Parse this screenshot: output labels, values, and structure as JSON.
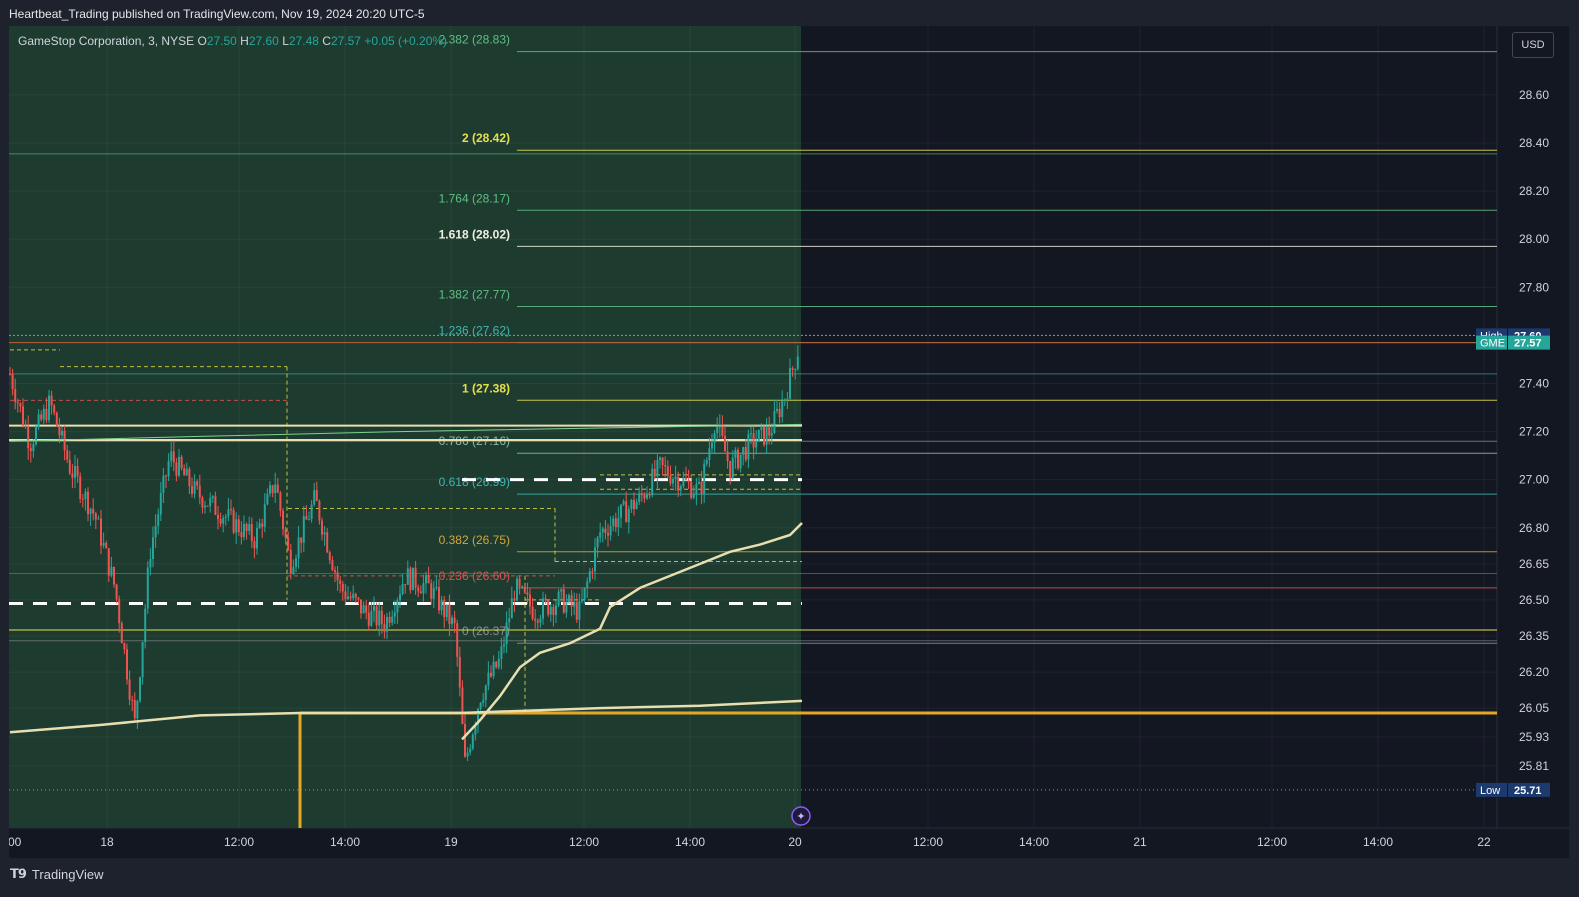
{
  "header": {
    "published_text": "Heartbeat_Trading published on TradingView.com, Nov 19, 2024 20:20 UTC-5"
  },
  "legend": {
    "symbol": "GameStop Corporation, 3, NYSE",
    "open_label": "O",
    "open_value": "27.50",
    "high_label": "H",
    "high_value": "27.60",
    "low_label": "L",
    "low_value": "27.48",
    "close_label": "C",
    "close_value": "27.57",
    "change": "+0.05 (+0.20%)"
  },
  "currency": "USD",
  "footer": {
    "brand": "TradingView",
    "logo_icon": "tradingview-logo-icon"
  },
  "colors": {
    "background": "#131722",
    "session_shade": "#1e3b30",
    "up_candle": "#26a69a",
    "down_candle": "#ef5350",
    "vwap": "#e8dfb0",
    "fib_yellow": "#e5e04a",
    "fib_green": "#5fbf84",
    "fib_teal": "#3fb6b0",
    "fib_orange": "#d4a63a",
    "fib_red": "#d9534f",
    "support_orange": "#e6a824"
  },
  "chart_data": {
    "type": "candlestick",
    "symbol": "GME",
    "timeframe": "3",
    "ylim": [
      25.66,
      28.88
    ],
    "x_ticks": [
      "00",
      "18",
      "12:00",
      "14:00",
      "19",
      "12:00",
      "14:00",
      "20",
      "12:00",
      "14:00",
      "21",
      "12:00",
      "14:00",
      "22"
    ],
    "y_ticks": [
      "28.60",
      "28.40",
      "28.20",
      "28.00",
      "27.80",
      "27.40",
      "27.20",
      "27.00",
      "26.80",
      "26.65",
      "26.50",
      "26.35",
      "26.20",
      "26.05",
      "25.93",
      "25.81"
    ],
    "price_tags": [
      {
        "label": "High",
        "value": "27.60",
        "price": 27.6,
        "color": "#1c3a6e"
      },
      {
        "label": "GME",
        "value": "27.57",
        "price": 27.57,
        "color": "#26a69a"
      },
      {
        "label": "Low",
        "value": "25.71",
        "price": 25.71,
        "color": "#1c3a6e"
      }
    ],
    "fib_levels": [
      {
        "text": "2.382 (28.83)",
        "price": 28.83,
        "color": "#5fbf84"
      },
      {
        "text": "2 (28.42)",
        "price": 28.42,
        "color": "#e5e04a"
      },
      {
        "text": "1.764 (28.17)",
        "price": 28.17,
        "color": "#5fbf84"
      },
      {
        "text": "1.618 (28.02)",
        "price": 28.02,
        "color": "#f0f0e0"
      },
      {
        "text": "1.382 (27.77)",
        "price": 27.77,
        "color": "#5fbf84"
      },
      {
        "text": "1.236 (27.62)",
        "price": 27.62,
        "color": "#3fb6b0"
      },
      {
        "text": "1 (27.38)",
        "price": 27.38,
        "color": "#e5e04a"
      },
      {
        "text": "0.786 (27.16)",
        "price": 27.16,
        "color": "#8fb8a8"
      },
      {
        "text": "0.618 (26.99)",
        "price": 26.99,
        "color": "#3fb6b0"
      },
      {
        "text": "0.382 (26.75)",
        "price": 26.75,
        "color": "#d4a63a"
      },
      {
        "text": "0.236 (26.60)",
        "price": 26.6,
        "color": "#d9534f"
      },
      {
        "text": "0 (26.37)",
        "price": 26.37,
        "color": "#8a8f98"
      }
    ],
    "session_marker_icon": "sparkle-icon"
  }
}
